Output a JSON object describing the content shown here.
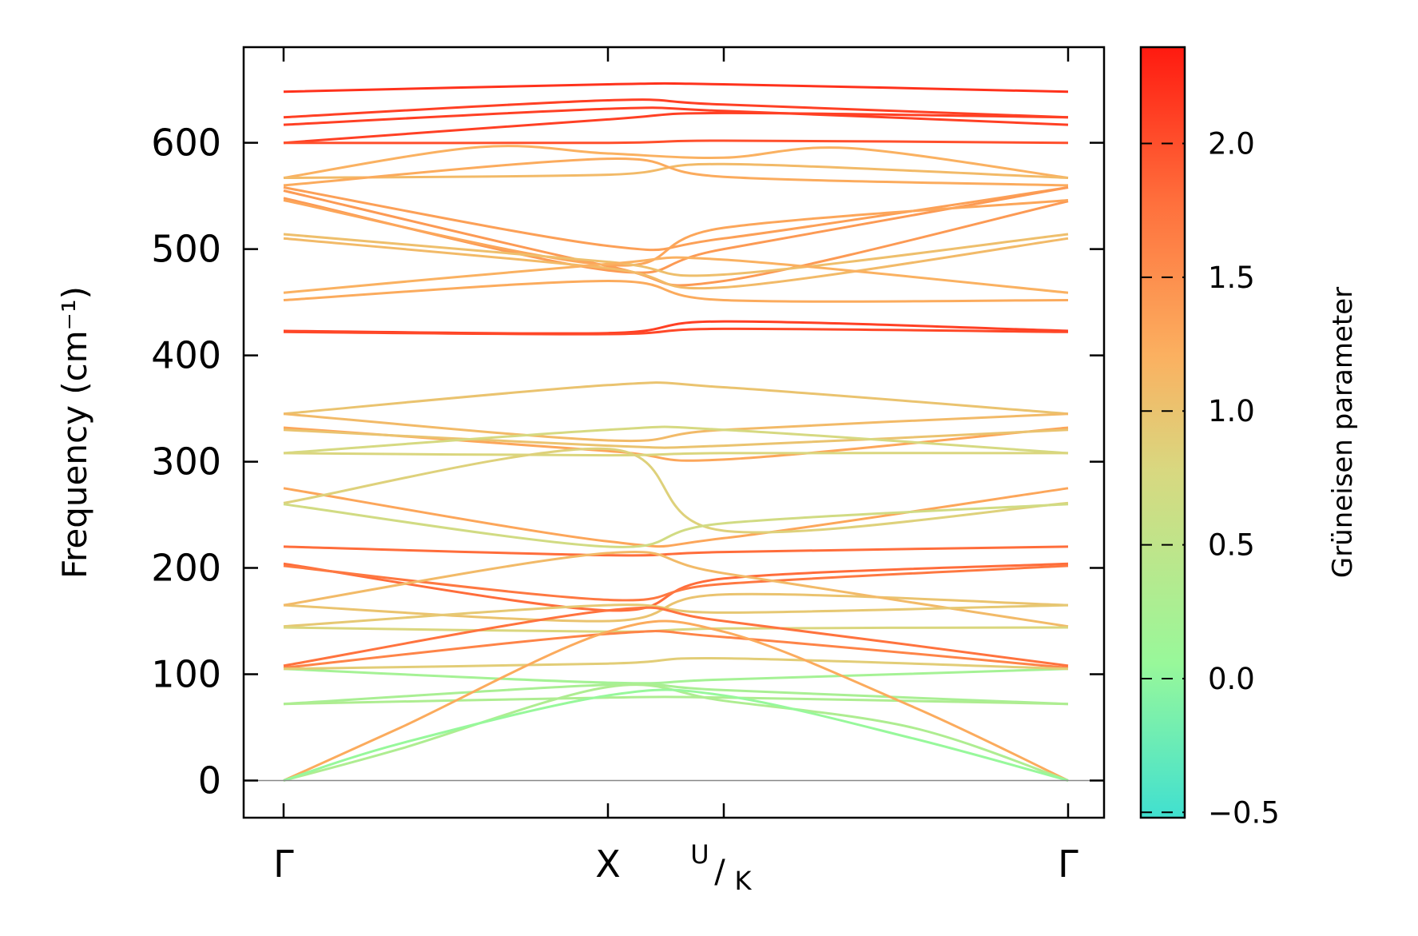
{
  "chart_data": {
    "type": "line",
    "title": "",
    "xlabel": "",
    "ylabel": "Frequency (cm⁻¹)",
    "ylim": [
      -35,
      690
    ],
    "yticks": [
      0,
      100,
      200,
      300,
      400,
      500,
      600
    ],
    "ytick_labels": [
      "0",
      "100",
      "200",
      "300",
      "400",
      "500",
      "600"
    ],
    "xlim": [
      -0.05,
      1.0
    ],
    "path_points": [
      {
        "name": "Γ",
        "x": 0.0
      },
      {
        "name": "X",
        "x": 0.4142
      },
      {
        "name": "U/K",
        "x": 0.5607
      },
      {
        "name": "Γ",
        "x": 1.0
      }
    ],
    "x_tick_labels": {
      "gamma_start": "Γ",
      "x": "X",
      "uk_sup": "U",
      "uk_sub": "K",
      "gamma_end": "Γ"
    },
    "zero_line": 0,
    "grid": false,
    "colorbar": {
      "label": "Grüneisen parameter",
      "range": [
        -0.52,
        2.36
      ],
      "ticks": [
        -0.5,
        0.0,
        0.5,
        1.0,
        1.5,
        2.0
      ],
      "tick_labels": [
        "−0.5",
        "0.0",
        "0.5",
        "1.0",
        "1.5",
        "2.0"
      ],
      "colormap": [
        "#40e0d0",
        "#98f89a",
        "#d8d880",
        "#fbb060",
        "#ff6f3c",
        "#ff1a10"
      ]
    },
    "bands": [
      {
        "x": [
          0,
          0.4142,
          0.5607,
          1
        ],
        "y": [
          648,
          655,
          655,
          648
        ],
        "g": 2.2
      },
      {
        "x": [
          0,
          0.4142,
          0.5607,
          1
        ],
        "y": [
          624,
          640,
          636,
          624
        ],
        "g": 2.1
      },
      {
        "x": [
          0,
          0.4142,
          0.5607,
          1
        ],
        "y": [
          617,
          632,
          630,
          617
        ],
        "g": 2.1
      },
      {
        "x": [
          0,
          0.4142,
          0.5607,
          1
        ],
        "y": [
          600,
          622,
          628,
          624
        ],
        "g": 2.1
      },
      {
        "x": [
          0,
          0.4142,
          0.5607,
          1
        ],
        "y": [
          600,
          600,
          602,
          600
        ],
        "g": 2.0
      },
      {
        "x": [
          0,
          0.25,
          0.4142,
          0.5607,
          0.72,
          1
        ],
        "y": [
          567,
          596,
          590,
          586,
          595,
          567
        ],
        "g": 1.2
      },
      {
        "x": [
          0,
          0.4142,
          0.5607,
          1
        ],
        "y": [
          567,
          570,
          580,
          567
        ],
        "g": 1.1
      },
      {
        "x": [
          0,
          0.4142,
          0.5607,
          1
        ],
        "y": [
          560,
          585,
          568,
          560
        ],
        "g": 1.25
      },
      {
        "x": [
          0,
          0.4142,
          0.5607,
          1
        ],
        "y": [
          558,
          503,
          510,
          558
        ],
        "g": 1.35
      },
      {
        "x": [
          0,
          0.4142,
          0.5607,
          1
        ],
        "y": [
          555,
          484,
          470,
          545
        ],
        "g": 1.4
      },
      {
        "x": [
          0,
          0.4142,
          0.5607,
          1
        ],
        "y": [
          548,
          480,
          500,
          558
        ],
        "g": 1.4
      },
      {
        "x": [
          0,
          0.4142,
          0.5607,
          1
        ],
        "y": [
          546,
          485,
          520,
          546
        ],
        "g": 1.3
      },
      {
        "x": [
          0,
          0.4142,
          0.5607,
          1
        ],
        "y": [
          514,
          488,
          476,
          514
        ],
        "g": 1.05
      },
      {
        "x": [
          0,
          0.4142,
          0.5607,
          1
        ],
        "y": [
          510,
          482,
          464,
          510
        ],
        "g": 1.1
      },
      {
        "x": [
          0,
          0.4142,
          0.5607,
          1
        ],
        "y": [
          459,
          486,
          490,
          459
        ],
        "g": 1.2
      },
      {
        "x": [
          0,
          0.4142,
          0.5607,
          1
        ],
        "y": [
          452,
          470,
          452,
          452
        ],
        "g": 1.25
      },
      {
        "x": [
          0,
          0.4142,
          0.5607,
          1
        ],
        "y": [
          423,
          421,
          432,
          423
        ],
        "g": 2.1
      },
      {
        "x": [
          0,
          0.4142,
          0.5607,
          1
        ],
        "y": [
          422,
          420,
          425,
          422
        ],
        "g": 2.05
      },
      {
        "x": [
          0,
          0.4142,
          0.5607,
          1
        ],
        "y": [
          345,
          372,
          370,
          345
        ],
        "g": 1.0
      },
      {
        "x": [
          0,
          0.4142,
          0.5607,
          1
        ],
        "y": [
          345,
          320,
          330,
          345
        ],
        "g": 1.1
      },
      {
        "x": [
          0,
          0.4142,
          0.5607,
          1
        ],
        "y": [
          332,
          310,
          302,
          332
        ],
        "g": 1.3
      },
      {
        "x": [
          0,
          0.4142,
          0.5607,
          1
        ],
        "y": [
          330,
          315,
          315,
          330
        ],
        "g": 1.0
      },
      {
        "x": [
          0,
          0.4142,
          0.5607,
          1
        ],
        "y": [
          308,
          330,
          330,
          308
        ],
        "g": 0.75
      },
      {
        "x": [
          0,
          0.4142,
          0.5607,
          1
        ],
        "y": [
          308,
          306,
          308,
          308
        ],
        "g": 0.8
      },
      {
        "x": [
          0,
          0.4142,
          0.5607,
          1
        ],
        "y": [
          275,
          225,
          228,
          275
        ],
        "g": 1.3
      },
      {
        "x": [
          0,
          0.4142,
          0.5607,
          1
        ],
        "y": [
          261,
          312,
          235,
          261
        ],
        "g": 0.85
      },
      {
        "x": [
          0,
          0.4142,
          0.5607,
          1
        ],
        "y": [
          260,
          220,
          242,
          260
        ],
        "g": 0.7
      },
      {
        "x": [
          0,
          0.4142,
          0.5607,
          1
        ],
        "y": [
          220,
          212,
          215,
          220
        ],
        "g": 1.8
      },
      {
        "x": [
          0,
          0.4142,
          0.5607,
          1
        ],
        "y": [
          204,
          160,
          190,
          204
        ],
        "g": 1.8
      },
      {
        "x": [
          0,
          0.4142,
          0.5607,
          1
        ],
        "y": [
          202,
          170,
          185,
          202
        ],
        "g": 1.7
      },
      {
        "x": [
          0,
          0.4142,
          0.5607,
          1
        ],
        "y": [
          165,
          150,
          175,
          165
        ],
        "g": 1.0
      },
      {
        "x": [
          0,
          0.4142,
          0.5607,
          1
        ],
        "y": [
          165,
          214,
          195,
          145
        ],
        "g": 1.1
      },
      {
        "x": [
          0,
          0.4142,
          0.5607,
          1
        ],
        "y": [
          145,
          165,
          158,
          165
        ],
        "g": 0.95
      },
      {
        "x": [
          0,
          0.4142,
          0.5607,
          1
        ],
        "y": [
          144,
          140,
          143,
          144
        ],
        "g": 0.8
      },
      {
        "x": [
          0,
          0.4142,
          0.5607,
          1
        ],
        "y": [
          108,
          160,
          150,
          108
        ],
        "g": 1.75
      },
      {
        "x": [
          0,
          0.4142,
          0.5607,
          1
        ],
        "y": [
          106,
          138,
          135,
          106
        ],
        "g": 1.6
      },
      {
        "x": [
          0,
          0.4142,
          0.5607,
          1
        ],
        "y": [
          105,
          92,
          95,
          105
        ],
        "g": 0.2
      },
      {
        "x": [
          0,
          0.4142,
          0.5607,
          1
        ],
        "y": [
          105,
          110,
          115,
          105
        ],
        "g": 0.9
      },
      {
        "x": [
          0,
          0.4142,
          0.5607,
          1
        ],
        "y": [
          72,
          90,
          85,
          72
        ],
        "g": 0.25
      },
      {
        "x": [
          0,
          0.4142,
          0.5607,
          1
        ],
        "y": [
          72,
          78,
          78,
          72
        ],
        "g": 0.3
      },
      {
        "x": [
          0,
          0.15,
          0.4142,
          0.5607,
          0.8,
          1
        ],
        "y": [
          0,
          50,
          140,
          140,
          70,
          0
        ],
        "g": 1.25
      },
      {
        "x": [
          0,
          0.15,
          0.4142,
          0.5607,
          0.8,
          1
        ],
        "y": [
          0,
          30,
          88,
          75,
          50,
          0
        ],
        "g": 0.3
      },
      {
        "x": [
          0,
          0.15,
          0.4142,
          0.5607,
          0.8,
          1
        ],
        "y": [
          0,
          35,
          80,
          80,
          40,
          0
        ],
        "g": 0.05
      }
    ]
  }
}
